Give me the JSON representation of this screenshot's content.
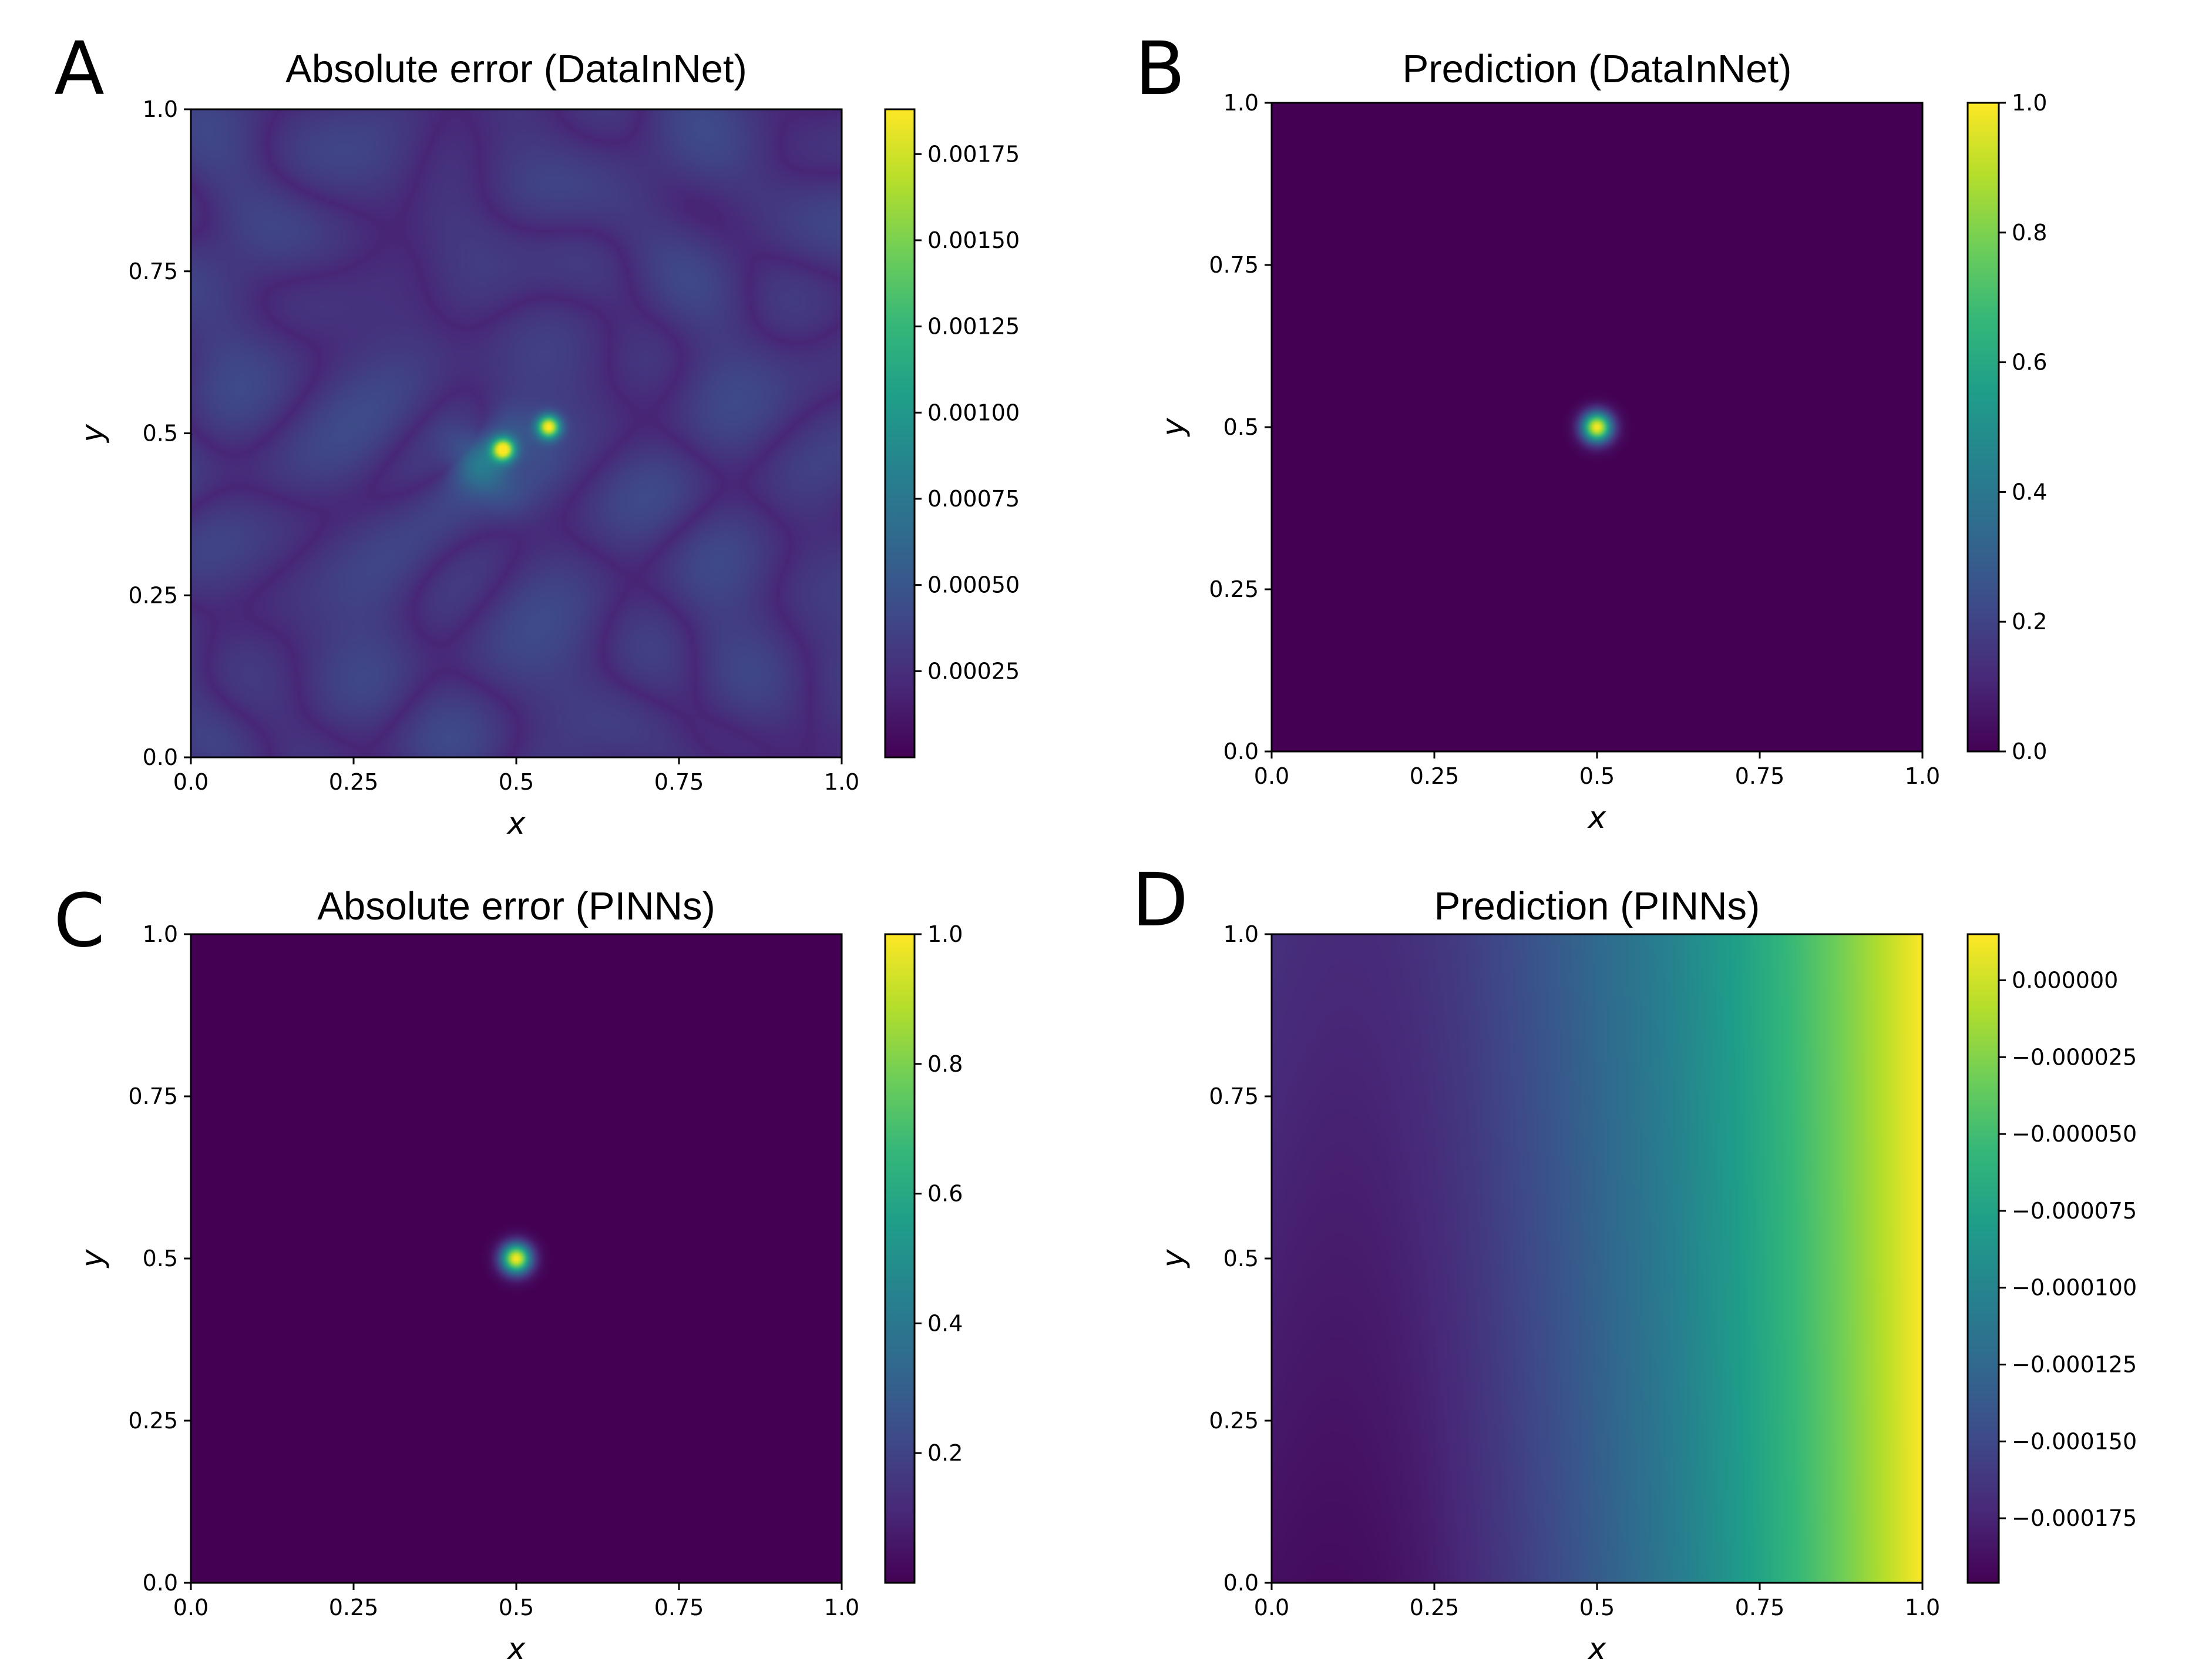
{
  "colormap": {
    "name": "viridis",
    "stops": [
      "#440154",
      "#482878",
      "#3e4a89",
      "#31688e",
      "#26828e",
      "#1f9e89",
      "#35b779",
      "#6ece58",
      "#b5de2b",
      "#fde725"
    ]
  },
  "chart_data": [
    {
      "type": "heatmap",
      "panel_letter": "A",
      "title": "Absolute error (DataInNet)",
      "xlabel": "x",
      "ylabel": "y",
      "xlim": [
        0,
        1
      ],
      "ylim": [
        0,
        1
      ],
      "xticks": [
        "0.0",
        "0.25",
        "0.5",
        "0.75",
        "1.0"
      ],
      "yticks": [
        "0.0",
        "0.25",
        "0.5",
        "0.75",
        "1.0"
      ],
      "field": "error_noise",
      "clim": [
        0,
        0.00188
      ],
      "colorbar_ticks": [
        {
          "value": 0.00025,
          "label": "0.00025"
        },
        {
          "value": 0.0005,
          "label": "0.00050"
        },
        {
          "value": 0.00075,
          "label": "0.00075"
        },
        {
          "value": 0.001,
          "label": "0.00100"
        },
        {
          "value": 0.00125,
          "label": "0.00125"
        },
        {
          "value": 0.0015,
          "label": "0.00150"
        },
        {
          "value": 0.00175,
          "label": "0.00175"
        }
      ],
      "peak_points": [
        {
          "x": 0.48,
          "y": 0.475
        },
        {
          "x": 0.55,
          "y": 0.51
        }
      ]
    },
    {
      "type": "heatmap",
      "panel_letter": "B",
      "title": "Prediction (DataInNet)",
      "xlabel": "x",
      "ylabel": "y",
      "xlim": [
        0,
        1
      ],
      "ylim": [
        0,
        1
      ],
      "xticks": [
        "0.0",
        "0.25",
        "0.5",
        "0.75",
        "1.0"
      ],
      "yticks": [
        "0.0",
        "0.25",
        "0.5",
        "0.75",
        "1.0"
      ],
      "field": "gaussian_peak",
      "peak_center": {
        "x": 0.5,
        "y": 0.5
      },
      "peak_value": 1.0,
      "clim": [
        0,
        1.0
      ],
      "colorbar_ticks": [
        {
          "value": 0.0,
          "label": "0.0"
        },
        {
          "value": 0.2,
          "label": "0.2"
        },
        {
          "value": 0.4,
          "label": "0.4"
        },
        {
          "value": 0.6,
          "label": "0.6"
        },
        {
          "value": 0.8,
          "label": "0.8"
        },
        {
          "value": 1.0,
          "label": "1.0"
        }
      ]
    },
    {
      "type": "heatmap",
      "panel_letter": "C",
      "title": "Absolute error (PINNs)",
      "xlabel": "x",
      "ylabel": "y",
      "xlim": [
        0,
        1
      ],
      "ylim": [
        0,
        1
      ],
      "xticks": [
        "0.0",
        "0.25",
        "0.5",
        "0.75",
        "1.0"
      ],
      "yticks": [
        "0.0",
        "0.25",
        "0.5",
        "0.75",
        "1.0"
      ],
      "field": "gaussian_peak",
      "peak_center": {
        "x": 0.5,
        "y": 0.5
      },
      "peak_value": 1.0,
      "clim": [
        0,
        1.0
      ],
      "colorbar_ticks": [
        {
          "value": 0.2,
          "label": "0.2"
        },
        {
          "value": 0.4,
          "label": "0.4"
        },
        {
          "value": 0.6,
          "label": "0.6"
        },
        {
          "value": 0.8,
          "label": "0.8"
        },
        {
          "value": 1.0,
          "label": "1.0"
        }
      ]
    },
    {
      "type": "heatmap",
      "panel_letter": "D",
      "title": "Prediction (PINNs)",
      "xlabel": "x",
      "ylabel": "y",
      "xlim": [
        0,
        1
      ],
      "ylim": [
        0,
        1
      ],
      "xticks": [
        "0.0",
        "0.25",
        "0.5",
        "0.75",
        "1.0"
      ],
      "yticks": [
        "0.0",
        "0.25",
        "0.5",
        "0.75",
        "1.0"
      ],
      "field": "smooth_gradient",
      "clim": [
        -0.000196,
        1.5e-05
      ],
      "colorbar_ticks": [
        {
          "value": -0.000175,
          "label": "−0.000175"
        },
        {
          "value": -0.00015,
          "label": "−0.000150"
        },
        {
          "value": -0.000125,
          "label": "−0.000125"
        },
        {
          "value": -0.0001,
          "label": "−0.000100"
        },
        {
          "value": -7.5e-05,
          "label": "−0.000075"
        },
        {
          "value": -5e-05,
          "label": "−0.000050"
        },
        {
          "value": -2.5e-05,
          "label": "−0.000025"
        },
        {
          "value": 0.0,
          "label": "0.000000"
        }
      ]
    }
  ]
}
